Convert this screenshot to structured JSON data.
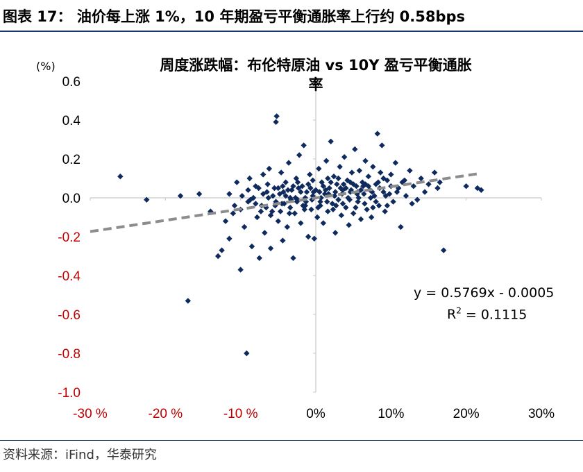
{
  "figure_title": "图表 17：   油价每上涨 1%，10 年期盈亏平衡通胀率上行约 0.58bps",
  "source": "资料来源：iFind，华泰研究",
  "chart_data": {
    "type": "scatter",
    "title_line1": "周度涨跌幅：布伦特原油 vs 10Y 盈亏平衡通胀",
    "title_line2": "率",
    "y_unit_label": "(%)",
    "xlabel": "",
    "ylabel": "",
    "xlim": [
      -0.3,
      0.3
    ],
    "ylim": [
      -1.0,
      0.6
    ],
    "x_ticks": [
      {
        "value": -0.3,
        "label": "-30 %",
        "color": "#c00000"
      },
      {
        "value": -0.2,
        "label": "-20 %",
        "color": "#c00000"
      },
      {
        "value": -0.1,
        "label": "-10 %",
        "color": "#c00000"
      },
      {
        "value": 0.0,
        "label": "0%",
        "color": "#000000"
      },
      {
        "value": 0.1,
        "label": "10%",
        "color": "#000000"
      },
      {
        "value": 0.2,
        "label": "20%",
        "color": "#000000"
      },
      {
        "value": 0.3,
        "label": "30%",
        "color": "#000000"
      }
    ],
    "y_ticks": [
      {
        "value": 0.6,
        "label": "0.6",
        "color": "#000000"
      },
      {
        "value": 0.4,
        "label": "0.4",
        "color": "#000000"
      },
      {
        "value": 0.2,
        "label": "0.2",
        "color": "#000000"
      },
      {
        "value": 0.0,
        "label": "0.0",
        "color": "#000000"
      },
      {
        "value": -0.2,
        "label": "-0.2",
        "color": "#c00000"
      },
      {
        "value": -0.4,
        "label": "-0.4",
        "color": "#c00000"
      },
      {
        "value": -0.6,
        "label": "-0.6",
        "color": "#c00000"
      },
      {
        "value": -0.8,
        "label": "-0.8",
        "color": "#c00000"
      },
      {
        "value": -1.0,
        "label": "-1.0",
        "color": "#c00000"
      }
    ],
    "grid": false,
    "marker_color": "#0f2a5c",
    "trendline_color": "#8c8c8c",
    "trendline": {
      "slope": 0.5769,
      "intercept": -0.0005,
      "equation": "y = 0.5769x - 0.0005",
      "r2_prefix": "R",
      "r2_value": " = 0.1115"
    },
    "series": [
      {
        "points": [
          [
            -0.26,
            0.11
          ],
          [
            -0.225,
            -0.01
          ],
          [
            -0.18,
            0.01
          ],
          [
            -0.17,
            -0.53
          ],
          [
            -0.155,
            0.02
          ],
          [
            -0.14,
            -0.07
          ],
          [
            -0.13,
            -0.3
          ],
          [
            -0.125,
            -0.27
          ],
          [
            -0.12,
            -0.12
          ],
          [
            -0.115,
            -0.21
          ],
          [
            -0.11,
            -0.08
          ],
          [
            -0.105,
            0.08
          ],
          [
            -0.1,
            -0.37
          ],
          [
            -0.095,
            -0.15
          ],
          [
            -0.092,
            -0.8
          ],
          [
            -0.09,
            -0.02
          ],
          [
            -0.088,
            0.1
          ],
          [
            -0.085,
            -0.25
          ],
          [
            -0.08,
            0.06
          ],
          [
            -0.078,
            -0.1
          ],
          [
            -0.075,
            -0.31
          ],
          [
            -0.072,
            -0.04
          ],
          [
            -0.07,
            0.12
          ],
          [
            -0.068,
            -0.18
          ],
          [
            -0.065,
            0.03
          ],
          [
            -0.062,
            0.15
          ],
          [
            -0.06,
            -0.26
          ],
          [
            -0.058,
            -0.07
          ],
          [
            -0.055,
            0.05
          ],
          [
            -0.053,
            0.39
          ],
          [
            -0.052,
            0.42
          ],
          [
            -0.05,
            -0.12
          ],
          [
            -0.048,
            0.02
          ],
          [
            -0.046,
            0.13
          ],
          [
            -0.044,
            -0.22
          ],
          [
            -0.042,
            -0.03
          ],
          [
            -0.04,
            0.08
          ],
          [
            -0.038,
            -0.15
          ],
          [
            -0.036,
            0.18
          ],
          [
            -0.034,
            -0.05
          ],
          [
            -0.032,
            0.04
          ],
          [
            -0.03,
            -0.31
          ],
          [
            -0.028,
            -0.08
          ],
          [
            -0.026,
            0.1
          ],
          [
            -0.024,
            -0.01
          ],
          [
            -0.022,
            0.22
          ],
          [
            -0.02,
            -0.13
          ],
          [
            -0.018,
            0.06
          ],
          [
            -0.016,
            0.27
          ],
          [
            -0.014,
            -0.04
          ],
          [
            -0.012,
            0.03
          ],
          [
            -0.01,
            -0.2
          ],
          [
            -0.008,
            0.12
          ],
          [
            -0.006,
            -0.06
          ],
          [
            -0.004,
            0.01
          ],
          [
            -0.002,
            -0.21
          ],
          [
            0.0,
            0.04
          ],
          [
            0.002,
            -0.1
          ],
          [
            0.004,
            0.15
          ],
          [
            0.006,
            -0.02
          ],
          [
            0.008,
            0.08
          ],
          [
            0.01,
            -0.13
          ],
          [
            0.012,
            0.02
          ],
          [
            0.014,
            0.19
          ],
          [
            0.016,
            -0.07
          ],
          [
            0.018,
            0.05
          ],
          [
            0.02,
            0.29
          ],
          [
            0.022,
            -0.03
          ],
          [
            0.024,
            0.11
          ],
          [
            0.026,
            -0.18
          ],
          [
            0.028,
            0.07
          ],
          [
            0.03,
            -0.01
          ],
          [
            0.032,
            0.16
          ],
          [
            0.034,
            -0.09
          ],
          [
            0.036,
            0.04
          ],
          [
            0.038,
            0.21
          ],
          [
            0.04,
            -0.05
          ],
          [
            0.042,
            0.09
          ],
          [
            0.044,
            -0.14
          ],
          [
            0.046,
            0.03
          ],
          [
            0.048,
            0.13
          ],
          [
            0.05,
            -0.08
          ],
          [
            0.052,
            0.25
          ],
          [
            0.054,
            0.06
          ],
          [
            0.056,
            -0.02
          ],
          [
            0.058,
            0.14
          ],
          [
            0.06,
            -0.11
          ],
          [
            0.062,
            0.08
          ],
          [
            0.064,
            0.02
          ],
          [
            0.066,
            0.19
          ],
          [
            0.068,
            -0.06
          ],
          [
            0.07,
            0.11
          ],
          [
            0.072,
            0.04
          ],
          [
            0.074,
            -0.1
          ],
          [
            0.076,
            0.16
          ],
          [
            0.078,
            0.01
          ],
          [
            0.08,
            0.07
          ],
          [
            0.082,
            0.33
          ],
          [
            0.084,
            -0.04
          ],
          [
            0.086,
            0.13
          ],
          [
            0.088,
            0.27
          ],
          [
            0.09,
            0.03
          ],
          [
            0.092,
            -0.07
          ],
          [
            0.095,
            0.09
          ],
          [
            0.098,
            0.02
          ],
          [
            0.1,
            0.12
          ],
          [
            0.103,
            -0.02
          ],
          [
            0.106,
            0.18
          ],
          [
            0.11,
            0.05
          ],
          [
            0.113,
            -0.15
          ],
          [
            0.115,
            0.08
          ],
          [
            0.12,
            0.01
          ],
          [
            0.125,
            0.14
          ],
          [
            0.13,
            0.06
          ],
          [
            0.135,
            -0.01
          ],
          [
            0.14,
            0.1
          ],
          [
            0.145,
            0.03
          ],
          [
            0.15,
            0.07
          ],
          [
            0.158,
            0.13
          ],
          [
            0.162,
            0.05
          ],
          [
            0.165,
            0.08
          ],
          [
            0.17,
            -0.27
          ],
          [
            0.2,
            0.06
          ],
          [
            0.215,
            0.05
          ],
          [
            0.22,
            0.04
          ],
          [
            -0.1,
            -0.06
          ],
          [
            -0.09,
            0.04
          ],
          [
            -0.08,
            -0.03
          ],
          [
            -0.07,
            0.02
          ],
          [
            -0.06,
            -0.09
          ],
          [
            -0.05,
            0.05
          ],
          [
            -0.045,
            -0.03
          ],
          [
            -0.04,
            0.01
          ],
          [
            -0.035,
            -0.08
          ],
          [
            -0.03,
            0.06
          ],
          [
            -0.025,
            -0.02
          ],
          [
            -0.02,
            0.03
          ],
          [
            -0.015,
            -0.06
          ],
          [
            -0.01,
            0.07
          ],
          [
            -0.005,
            -0.01
          ],
          [
            0.005,
            0.03
          ],
          [
            0.01,
            0.06
          ],
          [
            0.015,
            -0.02
          ],
          [
            0.02,
            0.08
          ],
          [
            0.025,
            0.01
          ],
          [
            0.03,
            0.1
          ],
          [
            0.035,
            0.02
          ],
          [
            0.04,
            0.05
          ],
          [
            0.045,
            -0.01
          ],
          [
            0.05,
            0.07
          ],
          [
            0.055,
            0.02
          ],
          [
            0.06,
            0.04
          ],
          [
            0.065,
            -0.03
          ],
          [
            0.07,
            0.06
          ],
          [
            0.075,
            0.03
          ],
          [
            0.08,
            -0.02
          ],
          [
            0.085,
            0.05
          ],
          [
            0.09,
            0.1
          ],
          [
            0.095,
            -0.04
          ],
          [
            0.1,
            0.06
          ],
          [
            -0.115,
            0.02
          ],
          [
            -0.108,
            -0.04
          ],
          [
            -0.098,
            0.01
          ],
          [
            -0.087,
            -0.01
          ],
          [
            -0.076,
            0.05
          ],
          [
            -0.066,
            -0.05
          ],
          [
            -0.057,
            0.01
          ],
          [
            -0.047,
            -0.07
          ],
          [
            -0.037,
            0.04
          ],
          [
            -0.027,
            0.0
          ],
          [
            -0.017,
            -0.04
          ],
          [
            -0.007,
            0.05
          ],
          [
            0.003,
            -0.05
          ],
          [
            0.013,
            0.04
          ],
          [
            0.023,
            -0.06
          ],
          [
            0.033,
            0.05
          ],
          [
            0.043,
            0.0
          ],
          [
            0.053,
            -0.05
          ],
          [
            0.063,
            0.06
          ],
          [
            0.073,
            0.0
          ],
          [
            0.083,
            0.08
          ],
          [
            0.093,
            0.01
          ],
          [
            0.108,
            0.03
          ],
          [
            0.118,
            0.09
          ],
          [
            0.128,
            -0.03
          ],
          [
            -0.064,
            0.07
          ],
          [
            -0.054,
            -0.04
          ],
          [
            -0.044,
            0.06
          ],
          [
            -0.034,
            0.0
          ],
          [
            -0.024,
            0.08
          ],
          [
            -0.014,
            0.0
          ],
          [
            -0.004,
            0.09
          ],
          [
            0.006,
            -0.04
          ],
          [
            0.016,
            0.1
          ],
          [
            0.026,
            0.03
          ],
          [
            0.036,
            -0.03
          ],
          [
            0.046,
            0.08
          ],
          [
            0.056,
            0.03
          ],
          [
            0.066,
            0.07
          ],
          [
            0.076,
            -0.05
          ],
          [
            -0.083,
            0.0
          ],
          [
            -0.073,
            -0.07
          ],
          [
            -0.063,
            0.0
          ],
          [
            -0.053,
            -0.02
          ],
          [
            -0.043,
            0.03
          ],
          [
            -0.033,
            -0.01
          ],
          [
            -0.023,
            0.05
          ],
          [
            -0.013,
            -0.02
          ],
          [
            -0.003,
            0.03
          ],
          [
            0.007,
            0.0
          ],
          [
            0.017,
            0.02
          ],
          [
            0.027,
            -0.04
          ],
          [
            0.037,
            0.07
          ],
          [
            0.047,
            0.04
          ],
          [
            0.057,
            0.0
          ]
        ]
      }
    ]
  }
}
